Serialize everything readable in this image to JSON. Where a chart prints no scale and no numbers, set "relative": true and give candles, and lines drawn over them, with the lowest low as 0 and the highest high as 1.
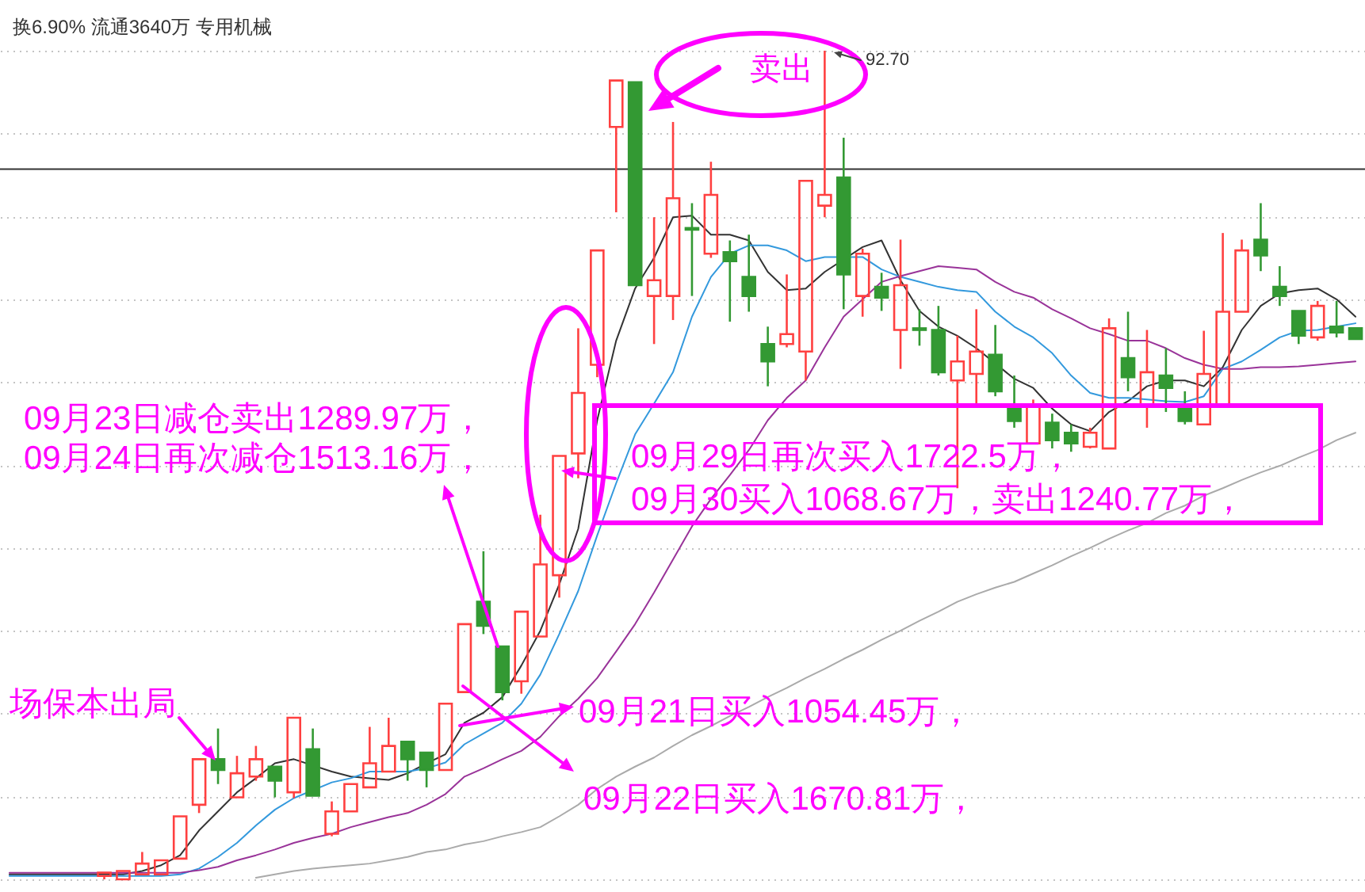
{
  "chart_data": {
    "type": "candlestick",
    "relative": true,
    "grid": "y",
    "categories": [
      null,
      null,
      null,
      null,
      null,
      null,
      null,
      null,
      null,
      null,
      null,
      null,
      null,
      null,
      null,
      null,
      null,
      null,
      null,
      null,
      null,
      null,
      null,
      null,
      null,
      null,
      null,
      null,
      null,
      null,
      null,
      null,
      null,
      null,
      null,
      null,
      null,
      null,
      null,
      null,
      null,
      null,
      null,
      null,
      null,
      null,
      null,
      null,
      null,
      null,
      null,
      null,
      null,
      null,
      null,
      null,
      null,
      null,
      null,
      null,
      null,
      null,
      null,
      null,
      null,
      null,
      null,
      null,
      null,
      null,
      null,
      null
    ],
    "ohlc": [
      null,
      null,
      null,
      null,
      null,
      [
        0.004,
        0.008,
        0.0,
        0.008
      ],
      [
        0.0,
        0.01,
        0.0,
        0.01
      ],
      [
        0.006,
        0.033,
        0.006,
        0.019
      ],
      [
        0.006,
        0.023,
        0.006,
        0.023
      ],
      [
        0.025,
        0.076,
        0.025,
        0.076
      ],
      [
        0.09,
        0.145,
        0.08,
        0.145
      ],
      [
        0.145,
        0.182,
        0.115,
        0.132
      ],
      [
        0.099,
        0.149,
        0.099,
        0.128
      ],
      [
        0.124,
        0.161,
        0.119,
        0.145
      ],
      [
        0.136,
        0.136,
        0.099,
        0.119
      ],
      [
        0.105,
        0.195,
        0.098,
        0.195
      ],
      [
        0.157,
        0.182,
        0.101,
        0.101
      ],
      [
        0.055,
        0.094,
        0.052,
        0.082
      ],
      [
        0.082,
        0.115,
        0.082,
        0.115
      ],
      [
        0.111,
        0.184,
        0.111,
        0.14
      ],
      [
        0.13,
        0.195,
        0.13,
        0.161
      ],
      [
        0.166,
        0.166,
        0.119,
        0.145
      ],
      [
        0.153,
        0.153,
        0.111,
        0.132
      ],
      [
        0.132,
        0.212,
        0.132,
        0.212
      ],
      [
        0.226,
        0.308,
        0.226,
        0.308
      ],
      [
        0.335,
        0.396,
        0.296,
        0.306
      ],
      [
        0.281,
        0.281,
        0.216,
        0.226
      ],
      [
        0.239,
        0.323,
        0.224,
        0.323
      ],
      [
        0.293,
        0.44,
        0.293,
        0.38
      ],
      [
        0.367,
        0.511,
        0.34,
        0.511
      ],
      [
        0.514,
        0.665,
        0.484,
        0.587
      ],
      [
        0.621,
        0.759,
        0.606,
        0.759
      ],
      [
        0.908,
        0.964,
        0.805,
        0.964
      ],
      [
        0.962,
        0.962,
        0.717,
        0.717
      ],
      [
        0.704,
        0.799,
        0.646,
        0.723
      ],
      [
        0.704,
        0.914,
        0.675,
        0.822
      ],
      [
        0.786,
        0.816,
        0.704,
        0.784
      ],
      [
        0.755,
        0.866,
        0.75,
        0.826
      ],
      [
        0.757,
        0.771,
        0.673,
        0.746
      ],
      [
        0.727,
        0.778,
        0.685,
        0.704
      ],
      [
        0.646,
        0.667,
        0.595,
        0.625
      ],
      [
        0.646,
        0.73,
        0.642,
        0.658
      ],
      [
        0.637,
        0.843,
        0.602,
        0.843
      ],
      [
        0.813,
        1.0,
        0.799,
        0.826
      ],
      [
        0.847,
        0.895,
        0.688,
        0.73
      ],
      [
        0.704,
        0.761,
        0.679,
        0.755
      ],
      [
        0.715,
        0.732,
        0.686,
        0.702
      ],
      [
        0.663,
        0.772,
        0.616,
        0.717
      ],
      [
        0.665,
        0.688,
        0.644,
        0.663
      ],
      [
        0.663,
        0.692,
        0.608,
        0.612
      ],
      [
        0.602,
        0.656,
        0.472,
        0.625
      ],
      [
        0.61,
        0.688,
        0.57,
        0.637
      ],
      [
        0.633,
        0.669,
        0.583,
        0.589
      ],
      [
        0.57,
        0.608,
        0.545,
        0.553
      ],
      [
        0.526,
        0.579,
        0.526,
        0.57
      ],
      [
        0.551,
        0.562,
        0.52,
        0.53
      ],
      [
        0.539,
        0.549,
        0.516,
        0.526
      ],
      [
        0.522,
        0.545,
        0.52,
        0.539
      ],
      [
        0.52,
        0.677,
        0.52,
        0.665
      ],
      [
        0.629,
        0.685,
        0.589,
        0.606
      ],
      [
        0.57,
        0.663,
        0.545,
        0.612
      ],
      [
        0.608,
        0.641,
        0.564,
        0.593
      ],
      [
        0.57,
        0.589,
        0.549,
        0.553
      ],
      [
        0.549,
        0.662,
        0.549,
        0.61
      ],
      [
        0.57,
        0.78,
        0.57,
        0.685
      ],
      [
        0.685,
        0.772,
        0.685,
        0.759
      ],
      [
        0.772,
        0.816,
        0.734,
        0.753
      ],
      [
        0.715,
        0.74,
        0.692,
        0.704
      ],
      [
        0.686,
        0.686,
        0.646,
        0.656
      ],
      [
        0.654,
        0.698,
        0.65,
        0.692
      ],
      [
        0.667,
        0.698,
        0.654,
        0.66
      ],
      [
        0.665,
        0.665,
        0.652,
        0.652
      ]
    ],
    "colors": [
      null,
      null,
      null,
      null,
      null,
      "#ff4040",
      "#ff4040",
      "#ff4040",
      "#ff4040",
      "#ff4040",
      "#ff4040",
      "#339933",
      "#ff4040",
      "#ff4040",
      "#339933",
      "#ff4040",
      "#339933",
      "#ff4040",
      "#ff4040",
      "#ff4040",
      "#ff4040",
      "#339933",
      "#339933",
      "#ff4040",
      "#ff4040",
      "#339933",
      "#339933",
      "#ff4040",
      "#ff4040",
      "#ff4040",
      "#ff4040",
      "#ff4040",
      "#ff4040",
      "#339933",
      "#ff4040",
      "#ff4040",
      "#339933",
      "#ff4040",
      "#339933",
      "#339933",
      "#339933",
      "#ff4040",
      "#ff4040",
      "#ff4040",
      "#339933",
      "#ff4040",
      "#339933",
      "#ff4040",
      "#339933",
      "#339933",
      "#ff4040",
      "#ff4040",
      "#339933",
      "#339933",
      "#ff4040",
      "#339933",
      "#339933",
      "#ff4040",
      "#ff4040",
      "#339933",
      "#ff4040",
      "#339933",
      "#339933",
      "#ff4040",
      "#ff4040",
      "#ff4040",
      "#339933",
      "#339933",
      "#339933",
      "#ff4040",
      "#339933",
      "#339933"
    ],
    "series": [
      {
        "type": "line",
        "color": "#333333",
        "values": [
          0.006,
          0.006,
          0.006,
          0.006,
          0.006,
          0.006,
          0.006,
          0.01,
          0.017,
          0.029,
          0.059,
          0.082,
          0.105,
          0.122,
          0.14,
          0.145,
          null,
          0.13,
          0.124,
          0.122,
          0.12,
          0.128,
          0.14,
          0.151,
          0.189,
          0.201,
          0.22,
          0.258,
          0.3,
          0.356,
          0.423,
          0.554,
          0.65,
          0.713,
          0.75,
          0.799,
          0.801,
          0.778,
          0.778,
          0.771,
          0.733,
          0.711,
          0.713,
          0.733,
          null,
          0.763,
          0.771,
          0.723,
          0.686,
          0.667,
          0.656,
          0.641,
          null,
          0.604,
          0.593,
          0.568,
          0.549,
          0.541,
          0.564,
          0.577,
          0.595,
          0.602,
          0.602,
          0.595,
          0.618,
          0.663,
          0.692,
          0.707,
          0.711,
          0.713,
          0.7,
          0.679
        ]
      },
      {
        "type": "line",
        "color": "#3399dd",
        "values": [
          0.004,
          0.004,
          0.004,
          0.004,
          0.004,
          0.004,
          0.004,
          0.004,
          0.004,
          0.006,
          0.013,
          0.027,
          0.044,
          0.065,
          0.084,
          0.098,
          null,
          0.117,
          0.122,
          0.13,
          0.13,
          0.13,
          0.134,
          0.141,
          0.163,
          0.176,
          0.189,
          0.212,
          0.247,
          0.296,
          0.348,
          0.415,
          0.478,
          0.537,
          0.574,
          0.612,
          0.679,
          0.727,
          0.755,
          0.765,
          0.765,
          0.759,
          0.746,
          0.751,
          null,
          0.751,
          0.736,
          0.727,
          0.721,
          0.715,
          0.711,
          0.709,
          0.685,
          0.667,
          0.654,
          0.635,
          0.608,
          0.587,
          0.581,
          0.581,
          0.579,
          0.577,
          0.576,
          0.583,
          0.616,
          0.625,
          0.639,
          0.654,
          0.662,
          0.663,
          0.667,
          0.671
        ]
      },
      {
        "type": "line",
        "color": "#993399",
        "values": [
          0.008,
          0.008,
          0.008,
          0.008,
          0.008,
          0.008,
          0.008,
          0.008,
          0.008,
          0.008,
          0.011,
          0.015,
          0.023,
          0.029,
          0.036,
          0.044,
          0.05,
          0.055,
          0.063,
          0.069,
          0.075,
          0.08,
          0.09,
          0.103,
          0.124,
          0.134,
          0.145,
          0.155,
          0.172,
          0.197,
          0.218,
          0.243,
          0.275,
          0.308,
          0.346,
          0.386,
          0.426,
          0.459,
          0.488,
          0.518,
          0.554,
          0.581,
          0.602,
          0.642,
          0.679,
          0.7,
          0.721,
          0.728,
          0.734,
          0.74,
          0.738,
          0.736,
          0.721,
          0.709,
          0.702,
          0.688,
          0.677,
          0.665,
          0.658,
          0.65,
          0.65,
          0.641,
          0.629,
          0.621,
          0.616,
          0.616,
          0.618,
          0.618,
          0.619,
          0.621,
          0.623,
          0.625
        ]
      },
      {
        "type": "line",
        "color": "#aaaaaa",
        "values": [
          null,
          null,
          null,
          null,
          null,
          null,
          null,
          null,
          null,
          null,
          null,
          null,
          null,
          0.002,
          0.006,
          0.01,
          0.013,
          0.015,
          0.017,
          0.019,
          0.023,
          0.027,
          0.033,
          0.036,
          0.042,
          0.046,
          0.052,
          0.057,
          0.063,
          0.076,
          0.09,
          0.109,
          0.124,
          0.136,
          0.147,
          0.161,
          0.174,
          0.185,
          0.197,
          0.208,
          0.22,
          0.231,
          0.243,
          0.254,
          0.266,
          0.277,
          0.289,
          0.3,
          0.312,
          0.323,
          0.335,
          0.344,
          0.352,
          0.359,
          0.369,
          0.379,
          0.39,
          0.4,
          0.411,
          0.421,
          0.43,
          0.442,
          0.451,
          0.463,
          0.472,
          0.482,
          0.491,
          0.499,
          0.509,
          0.518,
          0.53,
          0.539
        ]
      }
    ],
    "ref_lines": [
      {
        "axis": "y",
        "value": 0.857,
        "color": "#333333"
      }
    ],
    "annotations": [
      "换6.90% 流通3640万 专用机械",
      "卖出",
      "92.70",
      "09月23日减仓卖出1289.97万，",
      "09月24日再次减仓1513.16万，",
      "09月29日再次买入1722.5万，",
      "09月30买入1068.67万，卖出1240.77万，",
      "场保本出局",
      "09月21日买入1054.45万，",
      "09月22日买入1670.81万，"
    ]
  }
}
